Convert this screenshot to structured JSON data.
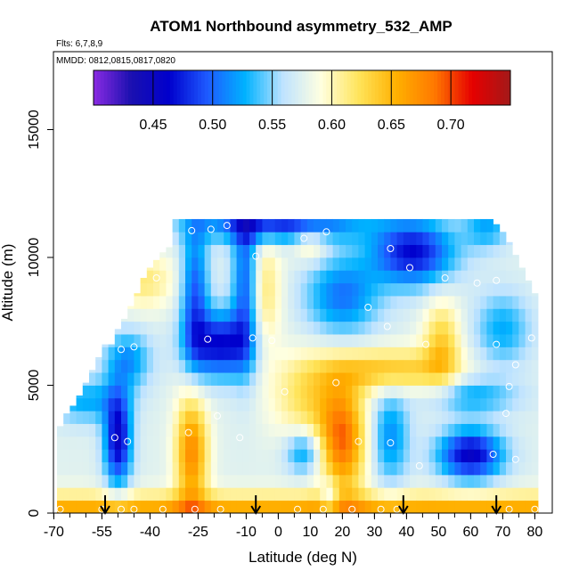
{
  "chart_data": {
    "type": "heatmap",
    "title": "ATOM1 Northbound asymmetry_532_AMP",
    "flights_label": "Flts: 6,7,8,9",
    "dates_label": "MMDD: 0812,0815,0817,0820",
    "xlabel": "Latitude (deg N)",
    "ylabel": "Altitude (m)",
    "xlim": [
      -70,
      80
    ],
    "ylim": [
      0,
      17500
    ],
    "x_ticks": [
      "-70",
      "-55",
      "-40",
      "-25",
      "-10",
      "0",
      "10",
      "20",
      "30",
      "40",
      "50",
      "60",
      "70",
      "80"
    ],
    "x_tick_values": [
      -70,
      -55,
      -40,
      -25,
      -10,
      0,
      10,
      20,
      30,
      40,
      50,
      60,
      70,
      80
    ],
    "y_ticks": [
      "0",
      "5000",
      "10000",
      "15000"
    ],
    "y_tick_values": [
      0,
      5000,
      10000,
      15000
    ],
    "colorbar": {
      "range": [
        0.4,
        0.75
      ],
      "tick_labels": [
        "0.45",
        "0.50",
        "0.55",
        "0.60",
        "0.65",
        "0.70"
      ],
      "tick_values": [
        0.45,
        0.5,
        0.55,
        0.6,
        0.65,
        0.7
      ],
      "colors": [
        "#8a2be2",
        "#1a10b0",
        "#0000cd",
        "#1e5aff",
        "#00b2ff",
        "#bfe3ff",
        "#ffffe0",
        "#ffe45a",
        "#ffb000",
        "#ff7800",
        "#e60000",
        "#a31919"
      ]
    },
    "grid": {
      "lat_start": -68,
      "lat_step": 2,
      "lat_count": 75,
      "alt_step": 500,
      "top_altitude_m": [
        3400,
        3900,
        4200,
        4600,
        5100,
        5600,
        6100,
        6600,
        6600,
        7200,
        7600,
        8100,
        8600,
        9200,
        9600,
        9900,
        10200,
        10400,
        11500,
        11500,
        11500,
        11500,
        11500,
        11500,
        11500,
        11500,
        11500,
        11500,
        11500,
        11500,
        11500,
        11500,
        11500,
        11500,
        11500,
        11500,
        11500,
        11500,
        11500,
        11500,
        11500,
        11500,
        11500,
        11500,
        11500,
        11500,
        11500,
        11500,
        11500,
        11500,
        11500,
        11500,
        11500,
        11500,
        11500,
        11500,
        11500,
        11500,
        11500,
        11500,
        11500,
        11500,
        11500,
        11500,
        11500,
        11500,
        11500,
        11500,
        11300,
        11000,
        10600,
        10100,
        9600,
        9100,
        8600
      ]
    },
    "sample_points": [
      {
        "lat": -68,
        "alt": 150
      },
      {
        "lat": -55,
        "alt": 150
      },
      {
        "lat": -49,
        "alt": 150
      },
      {
        "lat": -45,
        "alt": 150
      },
      {
        "lat": -36,
        "alt": 150
      },
      {
        "lat": -26,
        "alt": 150
      },
      {
        "lat": -18,
        "alt": 150
      },
      {
        "lat": 6,
        "alt": 150
      },
      {
        "lat": 14,
        "alt": 150
      },
      {
        "lat": 23,
        "alt": 150
      },
      {
        "lat": 32,
        "alt": 150
      },
      {
        "lat": 37,
        "alt": 150
      },
      {
        "lat": 72,
        "alt": 150
      },
      {
        "lat": 80,
        "alt": 150
      },
      {
        "lat": -51,
        "alt": 2950
      },
      {
        "lat": -47,
        "alt": 2800
      },
      {
        "lat": -28,
        "alt": 3150
      },
      {
        "lat": -12,
        "alt": 2950
      },
      {
        "lat": -19,
        "alt": 3800
      },
      {
        "lat": 25,
        "alt": 2800
      },
      {
        "lat": 35,
        "alt": 2750
      },
      {
        "lat": 44,
        "alt": 1850
      },
      {
        "lat": 67,
        "alt": 2300
      },
      {
        "lat": 71,
        "alt": 3900
      },
      {
        "lat": 74,
        "alt": 2100
      },
      {
        "lat": 2,
        "alt": 4750
      },
      {
        "lat": 18,
        "alt": 5100
      },
      {
        "lat": 72,
        "alt": 4950
      },
      {
        "lat": -49,
        "alt": 6400
      },
      {
        "lat": -45,
        "alt": 6500
      },
      {
        "lat": -22,
        "alt": 6800
      },
      {
        "lat": -8,
        "alt": 6850
      },
      {
        "lat": -2,
        "alt": 6750
      },
      {
        "lat": 34,
        "alt": 7300
      },
      {
        "lat": 46,
        "alt": 6600
      },
      {
        "lat": 68,
        "alt": 6600
      },
      {
        "lat": 79,
        "alt": 6850
      },
      {
        "lat": 74,
        "alt": 5800
      },
      {
        "lat": 28,
        "alt": 8050
      },
      {
        "lat": -51,
        "alt": 8700
      },
      {
        "lat": -38,
        "alt": 9200
      },
      {
        "lat": -7,
        "alt": 10050
      },
      {
        "lat": 35,
        "alt": 10350
      },
      {
        "lat": 41,
        "alt": 9600
      },
      {
        "lat": 52,
        "alt": 9200
      },
      {
        "lat": 62,
        "alt": 9000
      },
      {
        "lat": 68,
        "alt": 9100
      },
      {
        "lat": -21,
        "alt": 11100
      },
      {
        "lat": -16,
        "alt": 11250
      },
      {
        "lat": 8,
        "alt": 10750
      },
      {
        "lat": 15,
        "alt": 11000
      },
      {
        "lat": 71,
        "alt": 11150
      },
      {
        "lat": -27,
        "alt": 11050
      }
    ],
    "arrows_at_latitude": [
      -54,
      -7,
      39,
      68
    ]
  }
}
